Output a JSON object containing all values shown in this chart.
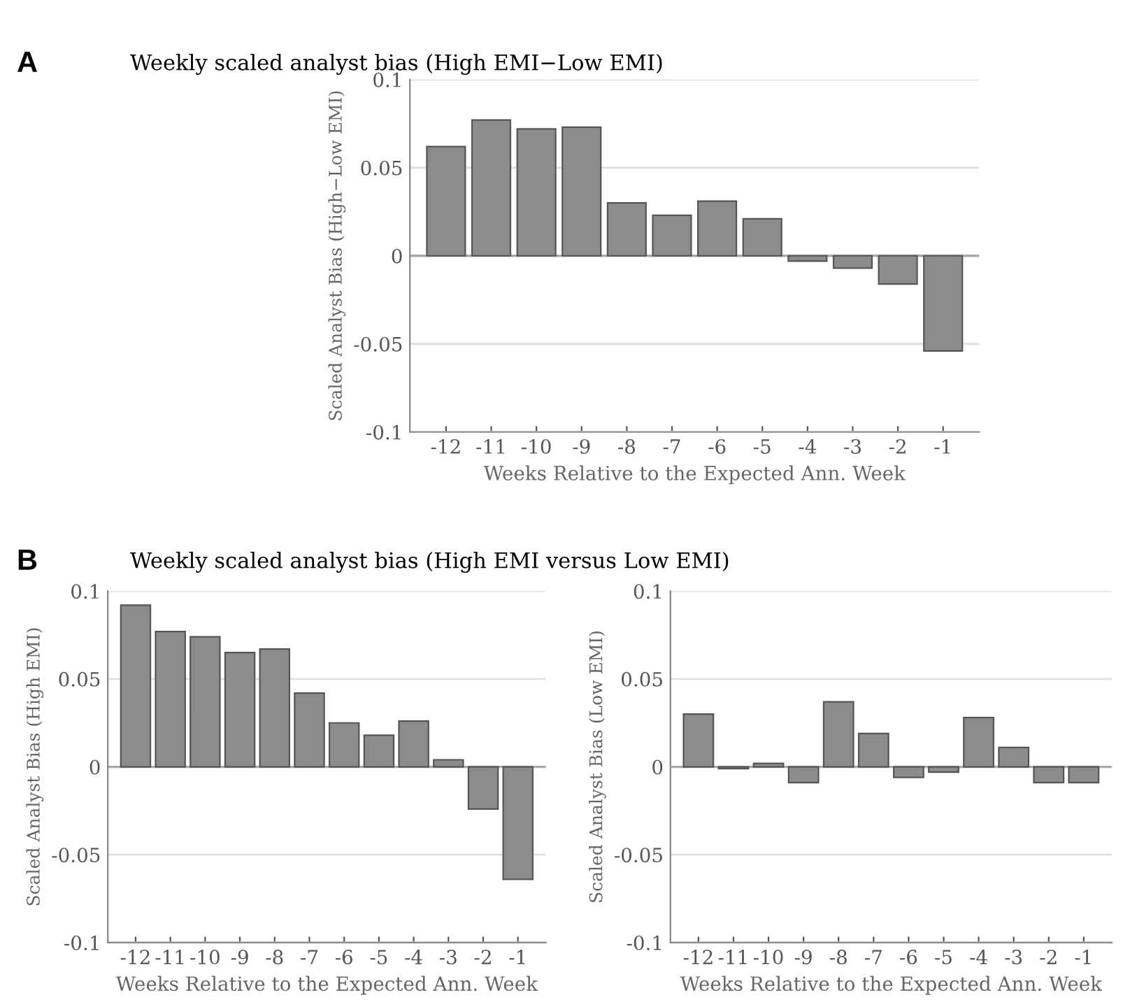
{
  "chart_data": [
    {
      "type": "bar",
      "title": "Weekly scaled analyst bias (High EMI−Low EMI)",
      "annotations": [
        "A"
      ],
      "xlabel": "Weeks Relative to the Expected Ann. Week",
      "ylabel": "Scaled Analyst Bias (High−Low EMI)",
      "categories": [
        "-12",
        "-11",
        "-10",
        "-9",
        "-8",
        "-7",
        "-6",
        "-5",
        "-4",
        "-3",
        "-2",
        "-1"
      ],
      "series": [
        {
          "color": "#8c8c8c",
          "values": [
            0.062,
            0.077,
            0.072,
            0.073,
            0.03,
            0.023,
            0.031,
            0.021,
            -0.003,
            -0.007,
            -0.016,
            -0.054
          ]
        }
      ],
      "ylim": [
        -0.1,
        0.1
      ],
      "yticks": [
        -0.1,
        -0.05,
        0,
        0.05,
        0.1
      ],
      "grid": "y",
      "legend": false
    },
    {
      "type": "bar",
      "title": "Weekly scaled analyst bias (High EMI versus Low EMI)",
      "annotations": [
        "B"
      ],
      "xlabel": "Weeks Relative to the Expected Ann. Week",
      "ylabel": "Scaled Analyst Bias (High EMI)",
      "categories": [
        "-12",
        "-11",
        "-10",
        "-9",
        "-8",
        "-7",
        "-6",
        "-5",
        "-4",
        "-3",
        "-2",
        "-1"
      ],
      "series": [
        {
          "color": "#8c8c8c",
          "values": [
            0.092,
            0.077,
            0.074,
            0.065,
            0.067,
            0.042,
            0.025,
            0.018,
            0.026,
            0.004,
            -0.024,
            -0.064
          ]
        }
      ],
      "ylim": [
        -0.1,
        0.1
      ],
      "yticks": [
        -0.1,
        -0.05,
        0,
        0.05,
        0.1
      ],
      "grid": "y",
      "legend": false
    },
    {
      "type": "bar",
      "xlabel": "Weeks Relative to the Expected Ann. Week",
      "ylabel": "Scaled Analyst Bias (Low EMI)",
      "categories": [
        "-12",
        "-11",
        "-10",
        "-9",
        "-8",
        "-7",
        "-6",
        "-5",
        "-4",
        "-3",
        "-2",
        "-1"
      ],
      "series": [
        {
          "color": "#8c8c8c",
          "values": [
            0.03,
            -0.001,
            0.002,
            -0.009,
            0.037,
            0.019,
            -0.006,
            -0.003,
            0.028,
            0.011,
            -0.009,
            -0.009
          ]
        }
      ],
      "ylim": [
        -0.1,
        0.1
      ],
      "yticks": [
        -0.1,
        -0.05,
        0,
        0.05,
        0.1
      ],
      "grid": "y",
      "legend": false
    }
  ]
}
